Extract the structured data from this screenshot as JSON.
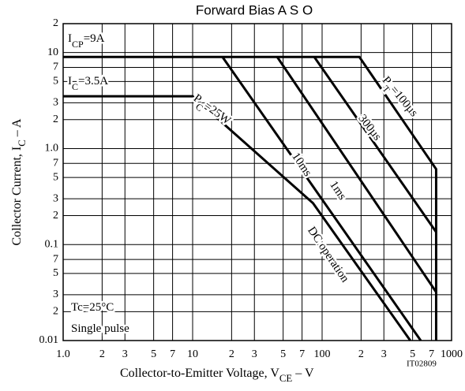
{
  "chart_data": {
    "type": "line",
    "title": "Forward Bias A S O",
    "x_label": {
      "text": "Collector-to-Emitter Voltage, V",
      "sub": "CE",
      "tail": " – V"
    },
    "y_label": {
      "text": "Collector Current, I",
      "sub": "C",
      "tail": " – A"
    },
    "code": "IT02809",
    "log_x": true,
    "log_y": true,
    "grid": true,
    "color": "#000000",
    "xlim": [
      1,
      1000
    ],
    "ylim": [
      0.01,
      20
    ],
    "xticks": [
      {
        "value": 1,
        "label": "1.0"
      },
      2,
      3,
      5,
      7,
      10,
      {
        "value": 20,
        "label": "2"
      },
      {
        "value": 30,
        "label": "3"
      },
      {
        "value": 50,
        "label": "5"
      },
      {
        "value": 70,
        "label": "7"
      },
      100,
      {
        "value": 200,
        "label": "2"
      },
      {
        "value": 300,
        "label": "3"
      },
      {
        "value": 500,
        "label": "5"
      },
      {
        "value": 700,
        "label": "7"
      },
      1000
    ],
    "yticks": [
      {
        "value": 20,
        "label": "2"
      },
      10,
      7,
      5,
      3,
      2,
      {
        "value": 1,
        "label": "1.0"
      },
      {
        "value": 0.7,
        "label": "7"
      },
      {
        "value": 0.5,
        "label": "5"
      },
      {
        "value": 0.3,
        "label": "3"
      },
      {
        "value": 0.2,
        "label": "2"
      },
      0.1,
      {
        "value": 0.07,
        "label": "7"
      },
      {
        "value": 0.05,
        "label": "5"
      },
      {
        "value": 0.03,
        "label": "3"
      },
      {
        "value": 0.02,
        "label": "2"
      },
      0.01
    ],
    "series": [
      {
        "x": [
          1,
          194,
          760,
          760
        ],
        "values": [
          9,
          9,
          0.61,
          0.01
        ]
      },
      {
        "x": [
          87,
          760
        ],
        "values": [
          9,
          0.135
        ]
      },
      {
        "x": [
          45,
          760
        ],
        "values": [
          9,
          0.032
        ]
      },
      {
        "x": [
          17,
          578
        ],
        "values": [
          9,
          0.01
        ]
      },
      {
        "x": [
          1,
          10,
          85,
          480
        ],
        "values": [
          3.5,
          3.5,
          0.27,
          0.01
        ]
      }
    ],
    "annotations": [
      {
        "text": "I",
        "sub": "CP",
        "tail": "=9A"
      },
      {
        "text": "I",
        "sub": "C",
        "tail": "=3.5A"
      },
      {
        "text": "P",
        "sub": "C",
        "tail": "=25W"
      },
      {
        "text": "P",
        "sub": "T",
        "tail": "=100µs"
      },
      {
        "text": "300µs"
      },
      {
        "text": "1ms"
      },
      {
        "text": "10ms"
      },
      {
        "text": "DC operation"
      },
      {
        "text": "Tc=25°C"
      },
      {
        "text": "Single pulse"
      }
    ]
  }
}
